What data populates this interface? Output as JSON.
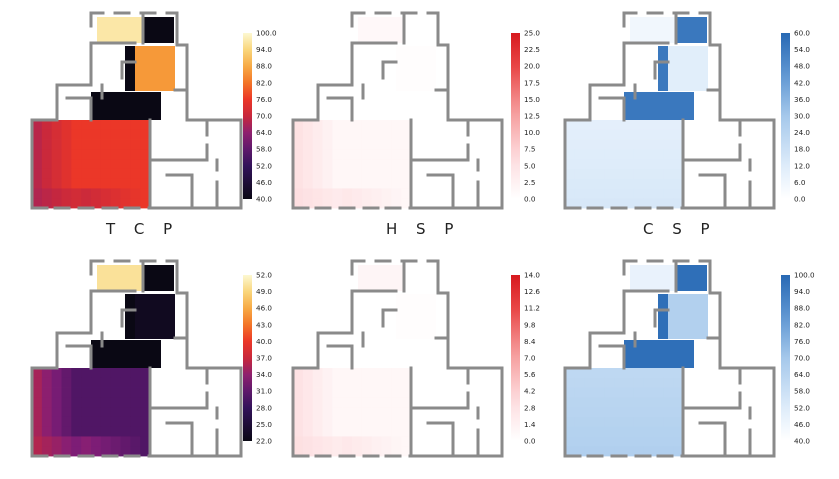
{
  "row_titles": [
    "T C P",
    "H S P",
    "C S P"
  ],
  "panels": [
    {
      "id": "tcp-top",
      "scheme": "inferno",
      "ticks": [
        "100.0",
        "94.0",
        "88.0",
        "82.0",
        "76.0",
        "70.0",
        "64.0",
        "58.0",
        "52.0",
        "46.0",
        "40.0"
      ],
      "zones": {
        "hall": 76,
        "room_a": 97,
        "room_b": 40,
        "corridor": 40,
        "room_c": 86,
        "room_d": 40
      }
    },
    {
      "id": "hsp-top",
      "scheme": "reds",
      "ticks": [
        "25.0",
        "22.5",
        "20.0",
        "17.5",
        "15.0",
        "12.5",
        "10.0",
        "7.5",
        "5.0",
        "2.5",
        "0.0"
      ],
      "zones": {
        "hall": 1.5,
        "room_a": 1.2,
        "room_b": 0,
        "corridor": 0,
        "room_c": 0.4,
        "room_d": 0
      }
    },
    {
      "id": "csp-top",
      "scheme": "blues",
      "ticks": [
        "60.0",
        "54.0",
        "48.0",
        "42.0",
        "36.0",
        "30.0",
        "24.0",
        "18.0",
        "12.0",
        "6.0",
        "0.0"
      ],
      "zones": {
        "hall": 10,
        "room_a": 5,
        "room_b": 55,
        "corridor": 55,
        "room_c": 11,
        "room_d": 55
      }
    },
    {
      "id": "tcp-bottom",
      "scheme": "inferno",
      "ticks": [
        "52.0",
        "49.0",
        "46.0",
        "43.0",
        "40.0",
        "37.0",
        "34.0",
        "31.0",
        "28.0",
        "25.0",
        "22.0"
      ],
      "zones": {
        "hall": 30,
        "room_a": 50,
        "room_b": 22,
        "corridor": 22,
        "room_c": 23,
        "room_d": 22
      }
    },
    {
      "id": "hsp-bottom",
      "scheme": "reds",
      "ticks": [
        "14.0",
        "12.6",
        "11.2",
        "9.8",
        "8.4",
        "7.0",
        "5.6",
        "4.2",
        "2.8",
        "1.4",
        "0.0"
      ],
      "zones": {
        "hall": 0.8,
        "room_a": 1,
        "room_b": 0,
        "corridor": 0,
        "room_c": 0.2,
        "room_d": 0
      }
    },
    {
      "id": "csp-bottom",
      "scheme": "blues",
      "ticks": [
        "100.0",
        "94.0",
        "88.0",
        "82.0",
        "76.0",
        "70.0",
        "64.0",
        "58.0",
        "52.0",
        "46.0",
        "40.0"
      ],
      "zones": {
        "hall": 62,
        "room_a": 48,
        "room_b": 98,
        "corridor": 98,
        "room_c": 66,
        "room_d": 98
      }
    }
  ],
  "colors": {
    "wall": "#8a8a8a",
    "outline": "#6f6f6f"
  }
}
